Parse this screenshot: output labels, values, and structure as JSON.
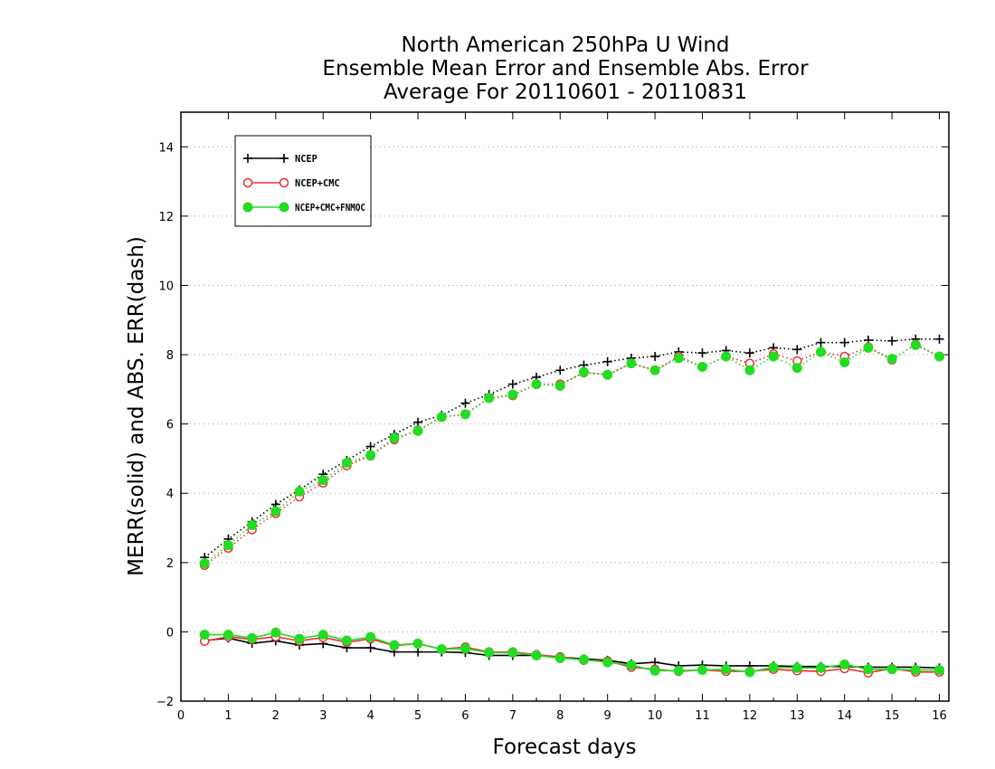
{
  "chart_data": {
    "type": "line",
    "title": [
      "North American 250hPa U Wind",
      "Ensemble Mean Error and Ensemble Abs. Error",
      "Average For 20110601 - 20110831"
    ],
    "xlabel": "Forecast days",
    "ylabel": "MERR(solid) and ABS. ERR(dash)",
    "xlim": [
      0,
      16.2
    ],
    "ylim": [
      -2,
      15
    ],
    "xticks": [
      "0",
      "1",
      "2",
      "3",
      "4",
      "5",
      "6",
      "7",
      "8",
      "9",
      "10",
      "11",
      "12",
      "13",
      "14",
      "15",
      "16"
    ],
    "yticks": [
      "-2",
      "0",
      "2",
      "4",
      "6",
      "8",
      "10",
      "12",
      "14"
    ],
    "grid": "horizontal dotted",
    "legend_position": "top-left",
    "x": [
      0.5,
      1,
      1.5,
      2,
      2.5,
      3,
      3.5,
      4,
      4.5,
      5,
      5.5,
      6,
      6.5,
      7,
      7.5,
      8,
      8.5,
      9,
      9.5,
      10,
      10.5,
      11,
      11.5,
      12,
      12.5,
      13,
      13.5,
      14,
      14.5,
      15,
      15.5,
      16
    ],
    "series": [
      {
        "name": "NCEP",
        "color": "#000000",
        "marker": "plus",
        "merr": [
          -0.25,
          -0.18,
          -0.33,
          -0.26,
          -0.38,
          -0.34,
          -0.46,
          -0.46,
          -0.58,
          -0.58,
          -0.58,
          -0.6,
          -0.68,
          -0.68,
          -0.68,
          -0.73,
          -0.78,
          -0.82,
          -0.92,
          -0.88,
          -0.98,
          -0.96,
          -0.98,
          -0.98,
          -0.98,
          -1.0,
          -1.0,
          -1.0,
          -1.02,
          -1.02,
          -1.02,
          -1.04
        ],
        "abs_err": [
          2.15,
          2.68,
          3.18,
          3.68,
          4.1,
          4.55,
          4.95,
          5.35,
          5.7,
          6.05,
          6.25,
          6.6,
          6.85,
          7.15,
          7.35,
          7.55,
          7.7,
          7.8,
          7.9,
          7.95,
          8.08,
          8.05,
          8.12,
          8.05,
          8.2,
          8.15,
          8.35,
          8.35,
          8.42,
          8.4,
          8.45,
          8.45
        ]
      },
      {
        "name": "NCEP+CMC",
        "color": "#e83030",
        "marker": "open-circle",
        "merr": [
          -0.27,
          -0.14,
          -0.22,
          -0.14,
          -0.26,
          -0.16,
          -0.3,
          -0.2,
          -0.4,
          -0.34,
          -0.5,
          -0.44,
          -0.58,
          -0.58,
          -0.66,
          -0.72,
          -0.82,
          -0.84,
          -1.02,
          -1.08,
          -1.14,
          -1.1,
          -1.14,
          -1.14,
          -1.08,
          -1.12,
          -1.14,
          -1.06,
          -1.18,
          -1.06,
          -1.16,
          -1.16
        ],
        "abs_err": [
          1.92,
          2.42,
          2.95,
          3.42,
          3.9,
          4.3,
          4.8,
          5.08,
          5.55,
          5.82,
          6.2,
          6.28,
          6.75,
          6.82,
          7.15,
          7.15,
          7.48,
          7.42,
          7.75,
          7.55,
          7.95,
          7.65,
          7.95,
          7.75,
          8.02,
          7.82,
          8.08,
          7.95,
          8.22,
          7.85,
          8.3,
          7.95
        ]
      },
      {
        "name": "NCEP+CMC+FNMOC",
        "color": "#22dd22",
        "marker": "filled-circle",
        "merr": [
          -0.08,
          -0.08,
          -0.18,
          -0.02,
          -0.2,
          -0.08,
          -0.25,
          -0.15,
          -0.38,
          -0.34,
          -0.5,
          -0.48,
          -0.6,
          -0.6,
          -0.68,
          -0.76,
          -0.8,
          -0.88,
          -0.96,
          -1.12,
          -1.12,
          -1.1,
          -1.08,
          -1.16,
          -1.02,
          -1.04,
          -1.04,
          -0.94,
          -1.08,
          -1.08,
          -1.1,
          -1.1
        ],
        "abs_err": [
          1.98,
          2.5,
          3.08,
          3.48,
          4.05,
          4.38,
          4.88,
          5.1,
          5.6,
          5.8,
          6.2,
          6.28,
          6.75,
          6.85,
          7.15,
          7.1,
          7.5,
          7.42,
          7.75,
          7.55,
          7.9,
          7.65,
          7.95,
          7.55,
          7.95,
          7.62,
          8.08,
          7.78,
          8.2,
          7.88,
          8.28,
          7.95
        ]
      }
    ]
  }
}
